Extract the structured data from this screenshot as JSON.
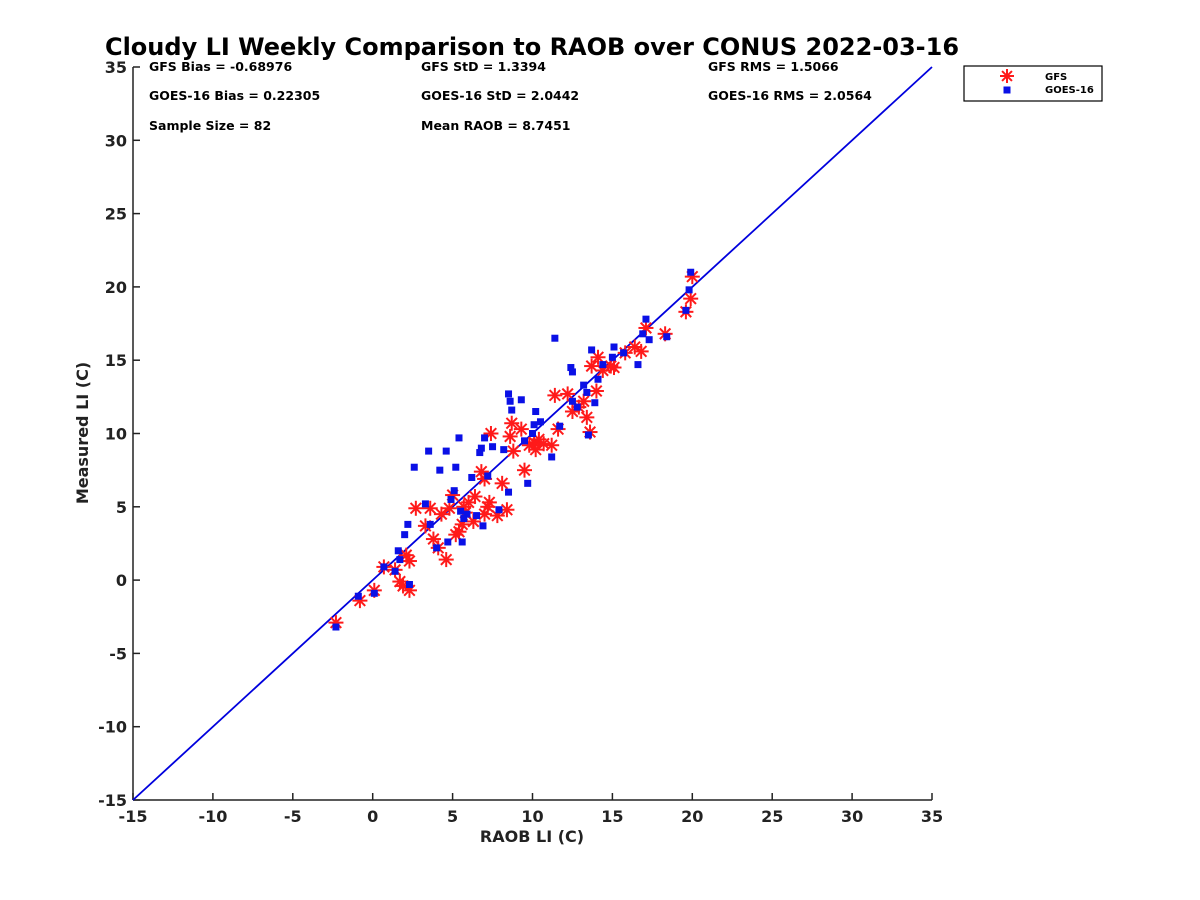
{
  "chart_data": {
    "type": "scatter",
    "title": "Cloudy LI Weekly Comparison to RAOB over CONUS 2022-03-16",
    "xlabel": "RAOB LI (C)",
    "ylabel": "Measured LI (C)",
    "xlim": [
      -15,
      35
    ],
    "ylim": [
      -15,
      35
    ],
    "xticks": [
      "-15",
      "-10",
      "-5",
      "0",
      "5",
      "10",
      "15",
      "20",
      "25",
      "30",
      "35"
    ],
    "yticks": [
      "-15",
      "-10",
      "-5",
      "0",
      "5",
      "10",
      "15",
      "20",
      "25",
      "30",
      "35"
    ],
    "reference_line": {
      "from": [
        -15,
        -15
      ],
      "to": [
        35,
        35
      ],
      "color": "#0000dd"
    },
    "legend_placement": "outside top-right",
    "stats": [
      "GFS Bias = -0.68976",
      "GOES-16 Bias = 0.22305",
      "Sample Size = 82",
      "GFS StD = 1.3394",
      "GOES-16 StD = 2.0442",
      "Mean RAOB = 8.7451",
      "GFS RMS = 1.5066",
      "GOES-16 RMS = 2.0564"
    ],
    "series": [
      {
        "name": "GFS",
        "color": "#ff1a1a",
        "marker": "asterisk",
        "points": [
          [
            -2.3,
            -2.9
          ],
          [
            -0.8,
            -1.4
          ],
          [
            0.1,
            -0.7
          ],
          [
            0.7,
            0.9
          ],
          [
            1.4,
            0.7
          ],
          [
            1.7,
            -0.1
          ],
          [
            1.9,
            -0.4
          ],
          [
            2.1,
            1.7
          ],
          [
            2.3,
            1.3
          ],
          [
            2.3,
            -0.7
          ],
          [
            2.7,
            4.9
          ],
          [
            3.3,
            3.7
          ],
          [
            3.6,
            4.9
          ],
          [
            3.8,
            2.8
          ],
          [
            4.1,
            2.2
          ],
          [
            4.3,
            4.5
          ],
          [
            4.6,
            1.4
          ],
          [
            4.8,
            4.9
          ],
          [
            5.0,
            5.8
          ],
          [
            5.2,
            3.1
          ],
          [
            5.4,
            3.3
          ],
          [
            5.6,
            3.8
          ],
          [
            5.7,
            5.0
          ],
          [
            5.8,
            4.6
          ],
          [
            6.0,
            5.3
          ],
          [
            6.3,
            4.0
          ],
          [
            6.4,
            5.7
          ],
          [
            6.8,
            7.4
          ],
          [
            7.0,
            6.9
          ],
          [
            7.0,
            4.5
          ],
          [
            7.2,
            5.0
          ],
          [
            7.3,
            5.3
          ],
          [
            7.4,
            10.0
          ],
          [
            7.8,
            4.4
          ],
          [
            8.1,
            6.6
          ],
          [
            8.4,
            4.8
          ],
          [
            8.6,
            9.8
          ],
          [
            8.7,
            10.7
          ],
          [
            8.8,
            8.8
          ],
          [
            9.3,
            10.3
          ],
          [
            9.5,
            7.5
          ],
          [
            9.8,
            9.2
          ],
          [
            10.1,
            9.4
          ],
          [
            10.2,
            8.9
          ],
          [
            10.4,
            9.6
          ],
          [
            10.7,
            9.3
          ],
          [
            11.2,
            9.2
          ],
          [
            11.4,
            12.6
          ],
          [
            11.6,
            10.3
          ],
          [
            12.2,
            12.7
          ],
          [
            12.5,
            11.5
          ],
          [
            12.9,
            11.8
          ],
          [
            13.2,
            12.2
          ],
          [
            13.4,
            11.1
          ],
          [
            13.6,
            10.1
          ],
          [
            13.7,
            14.6
          ],
          [
            14.0,
            12.9
          ],
          [
            14.1,
            15.2
          ],
          [
            14.4,
            14.3
          ],
          [
            14.9,
            14.6
          ],
          [
            15.1,
            14.5
          ],
          [
            15.8,
            15.5
          ],
          [
            16.4,
            15.9
          ],
          [
            16.8,
            15.6
          ],
          [
            17.1,
            17.2
          ],
          [
            18.3,
            16.8
          ],
          [
            19.6,
            18.3
          ],
          [
            19.9,
            19.2
          ],
          [
            20.0,
            20.7
          ]
        ]
      },
      {
        "name": "GOES-16",
        "color": "#0a10e6",
        "marker": "square",
        "points": [
          [
            -2.3,
            -3.2
          ],
          [
            -0.9,
            -1.1
          ],
          [
            0.1,
            -0.9
          ],
          [
            0.7,
            0.9
          ],
          [
            1.4,
            0.6
          ],
          [
            1.6,
            2.0
          ],
          [
            1.7,
            1.4
          ],
          [
            2.0,
            3.1
          ],
          [
            2.2,
            3.8
          ],
          [
            2.3,
            -0.3
          ],
          [
            2.6,
            7.7
          ],
          [
            3.3,
            5.2
          ],
          [
            3.5,
            8.8
          ],
          [
            3.6,
            3.8
          ],
          [
            4.0,
            2.2
          ],
          [
            4.2,
            7.5
          ],
          [
            4.6,
            8.8
          ],
          [
            4.7,
            2.6
          ],
          [
            4.9,
            5.5
          ],
          [
            5.1,
            6.1
          ],
          [
            5.2,
            7.7
          ],
          [
            5.4,
            9.7
          ],
          [
            5.5,
            4.7
          ],
          [
            5.6,
            2.6
          ],
          [
            5.7,
            4.2
          ],
          [
            5.9,
            4.5
          ],
          [
            6.2,
            7.0
          ],
          [
            6.5,
            4.4
          ],
          [
            6.7,
            8.7
          ],
          [
            6.8,
            9.0
          ],
          [
            6.9,
            3.7
          ],
          [
            7.0,
            9.7
          ],
          [
            7.2,
            7.1
          ],
          [
            7.5,
            9.1
          ],
          [
            7.9,
            4.8
          ],
          [
            8.2,
            8.9
          ],
          [
            8.5,
            6.0
          ],
          [
            8.5,
            12.7
          ],
          [
            8.6,
            12.2
          ],
          [
            8.7,
            11.6
          ],
          [
            9.3,
            12.3
          ],
          [
            9.5,
            9.5
          ],
          [
            9.7,
            6.6
          ],
          [
            10.0,
            10.0
          ],
          [
            10.1,
            10.6
          ],
          [
            10.2,
            11.5
          ],
          [
            10.5,
            10.8
          ],
          [
            11.2,
            8.4
          ],
          [
            11.4,
            16.5
          ],
          [
            11.7,
            10.5
          ],
          [
            12.4,
            14.5
          ],
          [
            12.5,
            14.2
          ],
          [
            12.5,
            12.2
          ],
          [
            12.8,
            11.8
          ],
          [
            13.2,
            13.3
          ],
          [
            13.4,
            12.8
          ],
          [
            13.5,
            9.9
          ],
          [
            13.7,
            15.7
          ],
          [
            13.9,
            12.1
          ],
          [
            14.1,
            13.7
          ],
          [
            14.4,
            14.7
          ],
          [
            15.0,
            15.2
          ],
          [
            15.1,
            15.9
          ],
          [
            15.7,
            15.5
          ],
          [
            16.6,
            14.7
          ],
          [
            16.9,
            16.8
          ],
          [
            17.1,
            17.8
          ],
          [
            17.3,
            16.4
          ],
          [
            18.4,
            16.6
          ],
          [
            19.6,
            18.4
          ],
          [
            19.8,
            19.8
          ],
          [
            19.9,
            21.0
          ]
        ]
      }
    ]
  }
}
